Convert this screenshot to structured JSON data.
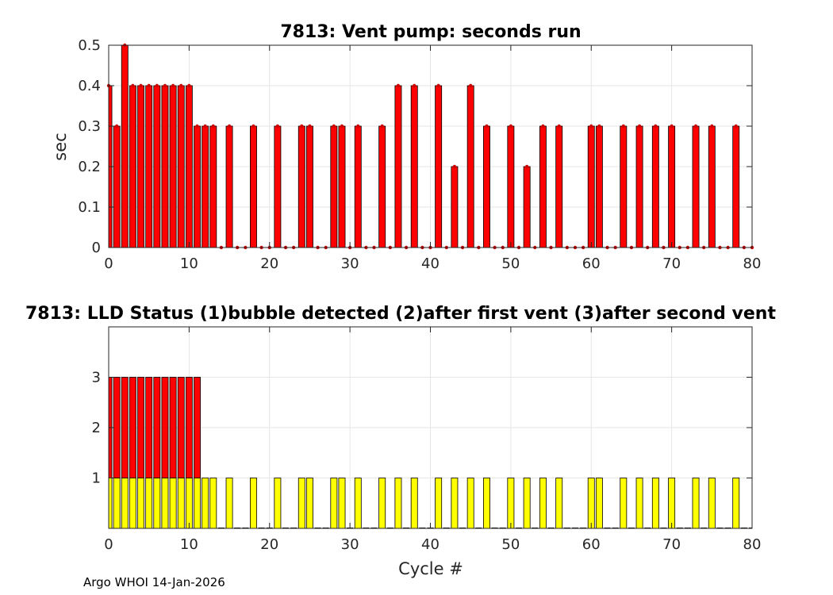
{
  "footer": "Argo WHOI 14-Jan-2026",
  "colors": {
    "red": "#ff0000",
    "yellow": "#ffff00",
    "grid": "#e6e6e6",
    "axis": "#262626",
    "marker": "#cc0000"
  },
  "chart_data": [
    {
      "type": "bar",
      "title": "7813: Vent pump: seconds run",
      "xlabel": "",
      "ylabel": "sec",
      "xlim": [
        0,
        80
      ],
      "ylim": [
        0,
        0.5
      ],
      "xticks": [
        0,
        10,
        20,
        30,
        40,
        50,
        60,
        70,
        80
      ],
      "yticks": [
        0,
        0.1,
        0.2,
        0.3,
        0.4,
        0.5
      ],
      "grid": true,
      "color": "#ff0000",
      "x": [
        0,
        1,
        2,
        3,
        4,
        5,
        6,
        7,
        8,
        9,
        10,
        11,
        12,
        13,
        14,
        15,
        16,
        17,
        18,
        19,
        20,
        21,
        22,
        23,
        24,
        25,
        26,
        27,
        28,
        29,
        30,
        31,
        32,
        33,
        34,
        35,
        36,
        37,
        38,
        39,
        40,
        41,
        42,
        43,
        44,
        45,
        46,
        47,
        48,
        49,
        50,
        51,
        52,
        53,
        54,
        55,
        56,
        57,
        58,
        59,
        60,
        61,
        62,
        63,
        64,
        65,
        66,
        67,
        68,
        69,
        70,
        71,
        72,
        73,
        74,
        75,
        76,
        77,
        78,
        79,
        80
      ],
      "values": [
        0.4,
        0.3,
        0.5,
        0.4,
        0.4,
        0.4,
        0.4,
        0.4,
        0.4,
        0.4,
        0.4,
        0.3,
        0.3,
        0.3,
        0,
        0.3,
        0,
        0,
        0.3,
        0,
        0,
        0.3,
        0,
        0,
        0.3,
        0.3,
        0,
        0,
        0.3,
        0.3,
        0,
        0.3,
        0,
        0,
        0.3,
        0,
        0.4,
        0,
        0.4,
        0,
        0,
        0.4,
        0,
        0.2,
        0,
        0.4,
        0,
        0.3,
        0,
        0,
        0.3,
        0,
        0.2,
        0,
        0.3,
        0,
        0.3,
        0,
        0,
        0,
        0.3,
        0.3,
        0,
        0,
        0.3,
        0,
        0.3,
        0,
        0.3,
        0,
        0.3,
        0,
        0,
        0.3,
        0,
        0.3,
        0,
        0,
        0.3,
        0,
        0
      ]
    },
    {
      "type": "bar",
      "title": "7813: LLD Status   (1)bubble detected   (2)after first vent  (3)after second vent",
      "xlabel": "Cycle #",
      "ylabel": "",
      "xlim": [
        0,
        80
      ],
      "ylim": [
        0,
        4
      ],
      "xticks": [
        0,
        10,
        20,
        30,
        40,
        50,
        60,
        70,
        80
      ],
      "yticks": [
        1,
        2,
        3
      ],
      "grid": true,
      "series": [
        {
          "color": "#ffff00",
          "x": [
            0,
            1,
            2,
            3,
            4,
            5,
            6,
            7,
            8,
            9,
            10,
            11,
            12,
            13,
            15,
            18,
            21,
            24,
            25,
            28,
            29,
            31,
            34,
            36,
            38,
            41,
            43,
            45,
            47,
            50,
            52,
            54,
            56,
            60,
            61,
            64,
            66,
            68,
            70,
            73,
            75,
            78
          ],
          "values": [
            1,
            1,
            1,
            1,
            1,
            1,
            1,
            1,
            1,
            1,
            1,
            1,
            1,
            1,
            1,
            1,
            1,
            1,
            1,
            1,
            1,
            1,
            1,
            1,
            1,
            1,
            1,
            1,
            1,
            1,
            1,
            1,
            1,
            1,
            1,
            1,
            1,
            1,
            1,
            1,
            1,
            1
          ]
        },
        {
          "color": "#ff0000",
          "x": [
            0,
            1,
            2,
            3,
            4,
            5,
            6,
            7,
            8,
            9,
            10,
            11
          ],
          "values": [
            3,
            3,
            3,
            3,
            3,
            3,
            3,
            3,
            3,
            3,
            3,
            3
          ]
        }
      ]
    }
  ]
}
